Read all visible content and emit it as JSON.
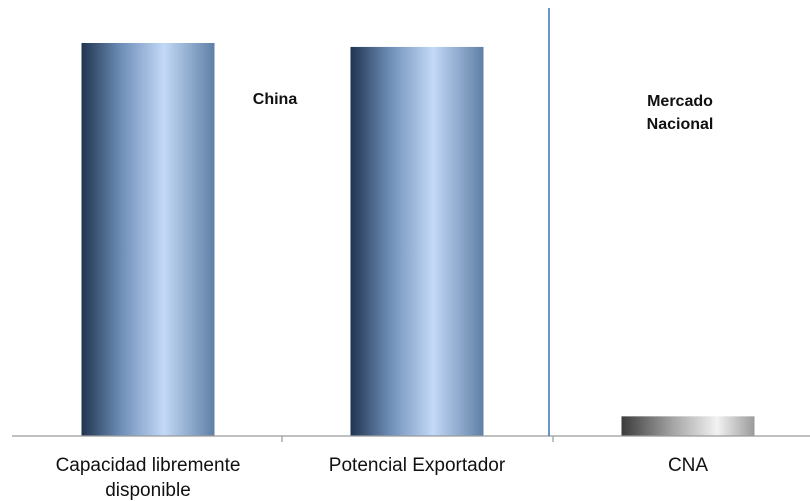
{
  "chart_data": {
    "type": "bar",
    "categories": [
      "Capacidad libremente disponible",
      "Potencial Exportador",
      "CNA"
    ],
    "values": [
      100,
      99,
      5
    ],
    "ylim": [
      0,
      100
    ],
    "grid": false,
    "annotations": [
      "China",
      "Mercado Nacional"
    ],
    "colors": {
      "china_bar_dark": "#1f3450",
      "china_bar_light": "#c3d9f7",
      "cna_bar_dark": "#3c3c3c",
      "cna_bar_light": "#f2f2f2",
      "divider": "#3b6eb8",
      "axis": "#9a9a9a"
    }
  },
  "labels": {
    "cat1_line1": "Capacidad libremente",
    "cat1_line2": "disponible",
    "cat2": "Potencial Exportador",
    "cat3": "CNA",
    "annot_china": "China",
    "annot_mercado_line1": "Mercado",
    "annot_mercado_line2": "Nacional"
  }
}
